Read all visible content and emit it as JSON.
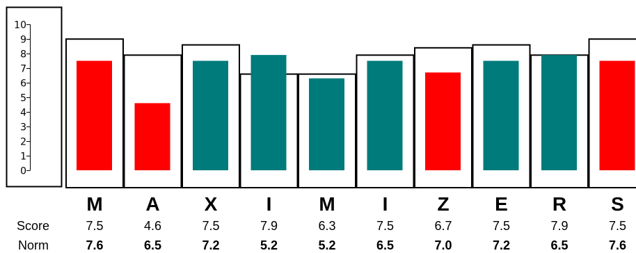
{
  "chart_data": {
    "type": "bar",
    "categories": [
      "M",
      "A",
      "X",
      "I",
      "M",
      "I",
      "Z",
      "E",
      "R",
      "S"
    ],
    "series": [
      {
        "name": "Score",
        "values": [
          7.5,
          4.6,
          7.5,
          7.9,
          6.3,
          7.5,
          6.7,
          7.5,
          7.9,
          7.5
        ]
      },
      {
        "name": "Norm",
        "values": [
          7.6,
          6.5,
          7.2,
          5.2,
          5.2,
          6.5,
          7.0,
          7.2,
          6.5,
          7.6
        ]
      }
    ],
    "display_values": {
      "score": [
        "7.5",
        "4.6",
        "7.5",
        "7.9",
        "6.3",
        "7.5",
        "6.7",
        "7.5",
        "7.9",
        "7.5"
      ],
      "norm": [
        "7.6",
        "6.5",
        "7.2",
        "5.2",
        "5.2",
        "6.5",
        "7.0",
        "7.2",
        "6.5",
        "7.6"
      ]
    },
    "bar_colors": [
      "#ff0000",
      "#ff0000",
      "#007b7b",
      "#007b7b",
      "#007b7b",
      "#007b7b",
      "#ff0000",
      "#007b7b",
      "#007b7b",
      "#ff0000"
    ],
    "colors": {
      "red": "#ff0000",
      "teal": "#007b7b",
      "frame": "#000000"
    },
    "ylim": [
      0,
      10
    ],
    "yticks": [
      "0",
      "1",
      "2",
      "3",
      "4",
      "5",
      "6",
      "7",
      "8",
      "9",
      "10"
    ],
    "row_labels": {
      "score": "Score",
      "norm": "Norm"
    },
    "legend": "none",
    "grid": false
  }
}
